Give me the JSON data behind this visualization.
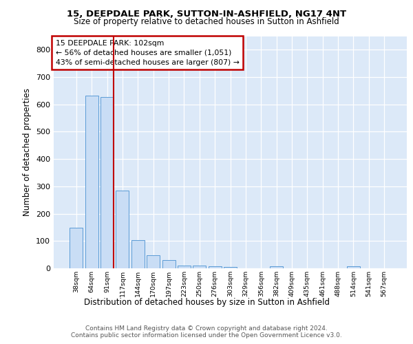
{
  "title1": "15, DEEPDALE PARK, SUTTON-IN-ASHFIELD, NG17 4NT",
  "title2": "Size of property relative to detached houses in Sutton in Ashfield",
  "xlabel": "Distribution of detached houses by size in Sutton in Ashfield",
  "ylabel": "Number of detached properties",
  "categories": [
    "38sqm",
    "64sqm",
    "91sqm",
    "117sqm",
    "144sqm",
    "170sqm",
    "197sqm",
    "223sqm",
    "250sqm",
    "276sqm",
    "303sqm",
    "329sqm",
    "356sqm",
    "382sqm",
    "409sqm",
    "435sqm",
    "461sqm",
    "488sqm",
    "514sqm",
    "541sqm",
    "567sqm"
  ],
  "values": [
    148,
    632,
    628,
    285,
    103,
    47,
    30,
    10,
    10,
    8,
    5,
    0,
    0,
    8,
    0,
    0,
    0,
    0,
    8,
    0,
    0
  ],
  "bar_color": "#c9ddf5",
  "bar_edge_color": "#5b9bd5",
  "vline_color": "#c00000",
  "vline_pos": 2.43,
  "annotation_title": "15 DEEPDALE PARK: 102sqm",
  "annotation_line1": "← 56% of detached houses are smaller (1,051)",
  "annotation_line2": "43% of semi-detached houses are larger (807) →",
  "annotation_box_color": "#c00000",
  "ylim": [
    0,
    850
  ],
  "yticks": [
    0,
    100,
    200,
    300,
    400,
    500,
    600,
    700,
    800
  ],
  "footer1": "Contains HM Land Registry data © Crown copyright and database right 2024.",
  "footer2": "Contains public sector information licensed under the Open Government Licence v3.0.",
  "bg_color": "#dce9f8",
  "grid_color": "#ffffff"
}
